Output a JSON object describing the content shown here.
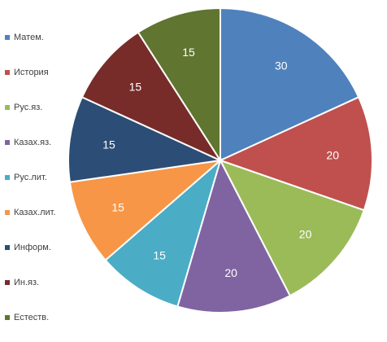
{
  "chart_data": {
    "type": "pie",
    "categories": [
      "Матем.",
      "История",
      "Рус.яз.",
      "Казах.яз.",
      "Рус.лит.",
      "Казах.лит.",
      "Информ.",
      "Ин.яз.",
      "Естеств."
    ],
    "values": [
      30,
      20,
      20,
      20,
      15,
      15,
      15,
      15,
      15
    ],
    "colors": [
      "#4F81BD",
      "#C0504D",
      "#9BBB59",
      "#8064A2",
      "#4BACC6",
      "#F79646",
      "#2C4D75",
      "#772C2A",
      "#5F7530"
    ],
    "legend_position": "left",
    "data_labels": true
  }
}
